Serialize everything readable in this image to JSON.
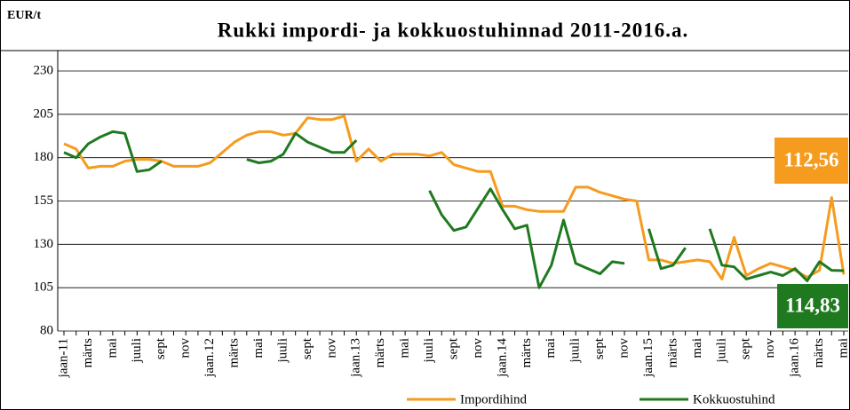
{
  "chart_data": {
    "type": "line",
    "title": "Rukki impordi- ja kokkuostuhinnad 2011-2016.a.",
    "y_label": "EUR/t",
    "categories": [
      "jaan-11",
      null,
      "märts",
      null,
      "mai",
      null,
      "juuli",
      null,
      "sept",
      null,
      "nov",
      null,
      "jaan.12",
      null,
      "märts",
      null,
      "mai",
      null,
      "juuli",
      null,
      "sept",
      null,
      "nov",
      null,
      "jaan.13",
      null,
      "märts",
      null,
      "mai",
      null,
      "juuli",
      null,
      "sept",
      null,
      "nov",
      null,
      "jaan.14",
      null,
      "märts",
      null,
      "mai",
      null,
      "juuli",
      null,
      "sept",
      null,
      "nov",
      null,
      "jaan.15",
      null,
      "märts",
      null,
      "mai",
      null,
      "juuli",
      null,
      "sept",
      null,
      "nov",
      null,
      "jaan.16",
      null,
      "märts",
      null,
      "mai"
    ],
    "series": [
      {
        "name": "Impordihind",
        "color": "#f59b1e",
        "values": [
          188,
          185,
          174,
          175,
          175,
          178,
          179,
          179,
          178,
          175,
          175,
          175,
          177,
          183,
          189,
          193,
          195,
          195,
          193,
          194,
          203,
          202,
          202,
          204,
          178,
          185,
          178,
          182,
          182,
          182,
          181,
          183,
          176,
          174,
          172,
          172,
          152,
          152,
          150,
          149,
          149,
          149,
          163,
          163,
          160,
          158,
          156,
          155,
          121,
          121,
          119,
          120,
          121,
          120,
          110,
          134,
          112,
          116,
          119,
          117,
          115,
          111,
          115,
          157,
          112.56
        ],
        "value_labels": [
          null,
          null,
          null,
          null,
          null,
          null,
          null,
          null,
          null,
          null,
          null,
          null,
          null,
          null,
          null,
          null,
          null,
          null,
          null,
          null,
          null,
          null,
          null,
          null,
          null,
          null,
          null,
          null,
          null,
          null,
          null,
          null,
          null,
          null,
          null,
          null,
          null,
          null,
          null,
          null,
          null,
          null,
          null,
          null,
          null,
          null,
          null,
          null,
          null,
          null,
          null,
          null,
          null,
          null,
          null,
          null,
          null,
          null,
          null,
          null,
          null,
          null,
          null,
          null,
          "112,56"
        ]
      },
      {
        "name": "Kokkuostuhind",
        "color": "#1f7a1f",
        "values": [
          183,
          180,
          188,
          192,
          195,
          194,
          172,
          173,
          178,
          null,
          null,
          null,
          null,
          null,
          null,
          179,
          177,
          178,
          182,
          194,
          189,
          186,
          183,
          183,
          190,
          null,
          null,
          null,
          null,
          null,
          161,
          147,
          138,
          140,
          151,
          162,
          150,
          139,
          141,
          105,
          118,
          144,
          119,
          116,
          113,
          120,
          119,
          null,
          139,
          116,
          118,
          128,
          null,
          139,
          118,
          117,
          110,
          112,
          114,
          112,
          116,
          109,
          120,
          115,
          114.83
        ],
        "value_labels": [
          null,
          null,
          null,
          null,
          null,
          null,
          null,
          null,
          null,
          null,
          null,
          null,
          null,
          null,
          null,
          null,
          null,
          null,
          null,
          null,
          null,
          null,
          null,
          null,
          null,
          null,
          null,
          null,
          null,
          null,
          null,
          null,
          null,
          null,
          null,
          null,
          null,
          null,
          null,
          null,
          null,
          null,
          null,
          null,
          null,
          null,
          null,
          null,
          null,
          null,
          null,
          null,
          null,
          null,
          null,
          null,
          null,
          null,
          null,
          null,
          null,
          null,
          null,
          null,
          "114,83"
        ]
      }
    ],
    "ylim": [
      80,
      230
    ],
    "yticks": [
      80,
      105,
      130,
      155,
      180,
      205,
      230
    ],
    "grid": true,
    "legend": "bottom"
  }
}
